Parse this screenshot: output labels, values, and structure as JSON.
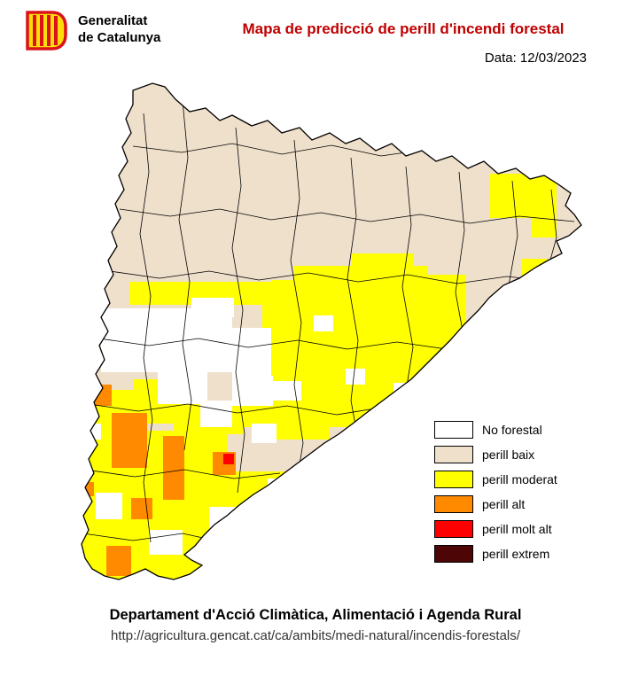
{
  "header": {
    "logo_line1": "Generalitat",
    "logo_line2": "de Catalunya",
    "title": "Mapa de predicció de perill d'incendi forestal",
    "title_color": "#C00000",
    "date_label": "Data: 12/03/2023"
  },
  "legend": {
    "items": [
      {
        "label": "No forestal",
        "color": "#FFFFFF"
      },
      {
        "label": "perill baix",
        "color": "#EFE0CB"
      },
      {
        "label": "perill moderat",
        "color": "#FFFF00"
      },
      {
        "label": "perill alt",
        "color": "#FF8A00"
      },
      {
        "label": "perill molt alt",
        "color": "#FF0000"
      },
      {
        "label": "perill extrem",
        "color": "#4D0505"
      }
    ]
  },
  "map": {
    "base_color": "#EFE0CB",
    "border_color": "#000000",
    "regions": [
      {
        "name": "perill moderat",
        "color": "#FFFF00",
        "rects": [
          [
            552,
            196,
            76,
            50
          ],
          [
            600,
            246,
            28,
            22
          ],
          [
            588,
            292,
            30,
            20
          ],
          [
            306,
            316,
            30,
            26
          ],
          [
            332,
            300,
            150,
            44
          ],
          [
            396,
            286,
            70,
            20
          ],
          [
            476,
            310,
            50,
            30
          ],
          [
            296,
            338,
            230,
            62
          ],
          [
            276,
            396,
            222,
            52
          ],
          [
            262,
            444,
            186,
            38
          ],
          [
            146,
            318,
            164,
            26
          ],
          [
            420,
            434,
            48,
            34
          ],
          [
            86,
            440,
            64,
            52
          ],
          [
            150,
            428,
            64,
            50
          ],
          [
            196,
            456,
            78,
            34
          ],
          [
            76,
            486,
            180,
            168
          ],
          [
            252,
            532,
            80,
            56
          ],
          [
            308,
            462,
            64,
            34
          ]
        ]
      },
      {
        "name": "no forestal",
        "color": "#FFFFFF",
        "rects": [
          [
            114,
            348,
            148,
            72
          ],
          [
            178,
            420,
            56,
            36
          ],
          [
            216,
            336,
            48,
            22
          ],
          [
            262,
            370,
            44,
            54
          ],
          [
            226,
            452,
            36,
            30
          ],
          [
            262,
            424,
            46,
            34
          ],
          [
            306,
            430,
            34,
            22
          ],
          [
            354,
            356,
            22,
            18
          ],
          [
            390,
            416,
            22,
            18
          ],
          [
            444,
            432,
            26,
            20
          ],
          [
            236,
            572,
            34,
            28
          ],
          [
            108,
            556,
            30,
            30
          ],
          [
            168,
            598,
            38,
            28
          ],
          [
            94,
            478,
            20,
            18
          ],
          [
            284,
            478,
            28,
            22
          ],
          [
            302,
            540,
            20,
            18
          ]
        ]
      },
      {
        "name": "perill alt",
        "color": "#FF8A00",
        "rects": [
          [
            102,
            434,
            24,
            24
          ],
          [
            126,
            466,
            40,
            62
          ],
          [
            184,
            492,
            24,
            72
          ],
          [
            148,
            562,
            24,
            24
          ],
          [
            240,
            510,
            26,
            26
          ],
          [
            120,
            616,
            28,
            34
          ],
          [
            90,
            544,
            16,
            16
          ]
        ]
      },
      {
        "name": "perill molt alt",
        "color": "#FF0000",
        "rects": [
          [
            252,
            512,
            12,
            12
          ]
        ]
      }
    ]
  },
  "footer": {
    "department": "Departament d'Acció Climàtica, Alimentació i Agenda Rural",
    "url": "http://agricultura.gencat.cat/ca/ambits/medi-natural/incendis-forestals/"
  }
}
